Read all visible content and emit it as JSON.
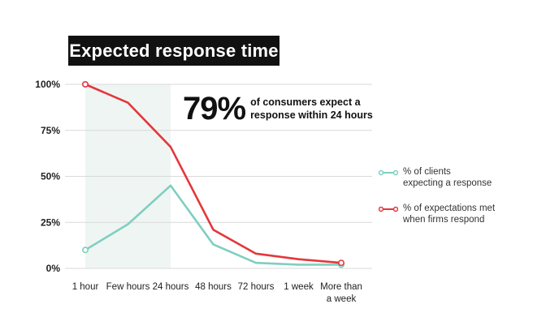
{
  "chart_data": {
    "type": "line",
    "title": "Expected response time",
    "callout": {
      "value": "79%",
      "text": "of consumers expect a response within 24 hours"
    },
    "categories": [
      "1 hour",
      "Few hours",
      "24 hours",
      "48 hours",
      "72 hours",
      "1 week",
      "More than a week"
    ],
    "category_labels": [
      [
        "1 hour"
      ],
      [
        "Few hours"
      ],
      [
        "24 hours"
      ],
      [
        "48 hours"
      ],
      [
        "72 hours"
      ],
      [
        "1 week"
      ],
      [
        "More than",
        "a week"
      ]
    ],
    "yticks": [
      0,
      25,
      50,
      75,
      100
    ],
    "ytick_labels": [
      "0%",
      "25%",
      "50%",
      "75%",
      "100%"
    ],
    "ylim": [
      0,
      100
    ],
    "highlight_range": [
      "1 hour",
      "24 hours"
    ],
    "series": [
      {
        "name": "% of clients expecting a response",
        "name_lines": [
          "% of clients",
          "expecting a response"
        ],
        "color": "#7fcfbf",
        "values": [
          10,
          24,
          45,
          13,
          3,
          2,
          2
        ]
      },
      {
        "name": "% of expectations met when firms respond",
        "name_lines": [
          "% of expectations met",
          "when firms respond"
        ],
        "color": "#e4373c",
        "values": [
          100,
          90,
          66,
          21,
          8,
          5,
          3
        ]
      }
    ],
    "highlight_color": "#eef5f3",
    "grid_color": "#d9d9d9"
  }
}
